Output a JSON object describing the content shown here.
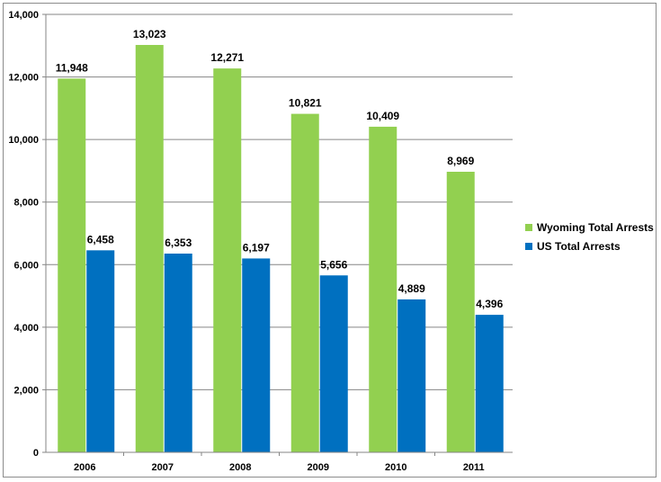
{
  "chart_data": {
    "type": "bar",
    "categories": [
      "2006",
      "2007",
      "2008",
      "2009",
      "2010",
      "2011"
    ],
    "series": [
      {
        "name": "Wyoming Total Arrests",
        "color": "#92d050",
        "values": [
          11948,
          13023,
          12271,
          10821,
          10409,
          8969
        ],
        "labels": [
          "11,948",
          "13,023",
          "12,271",
          "10,821",
          "10,409",
          "8,969"
        ]
      },
      {
        "name": "US Total Arrests",
        "color": "#0070c0",
        "values": [
          6458,
          6353,
          6197,
          5656,
          4889,
          4396
        ],
        "labels": [
          "6,458",
          "6,353",
          "6,197",
          "5,656",
          "4,889",
          "4,396"
        ]
      }
    ],
    "y_ticks": [
      "0",
      "2,000",
      "4,000",
      "6,000",
      "8,000",
      "10,000",
      "12,000",
      "14,000"
    ],
    "ylim": [
      0,
      14000
    ],
    "grid": true,
    "legend": "right",
    "title": "",
    "xlabel": "",
    "ylabel": ""
  }
}
